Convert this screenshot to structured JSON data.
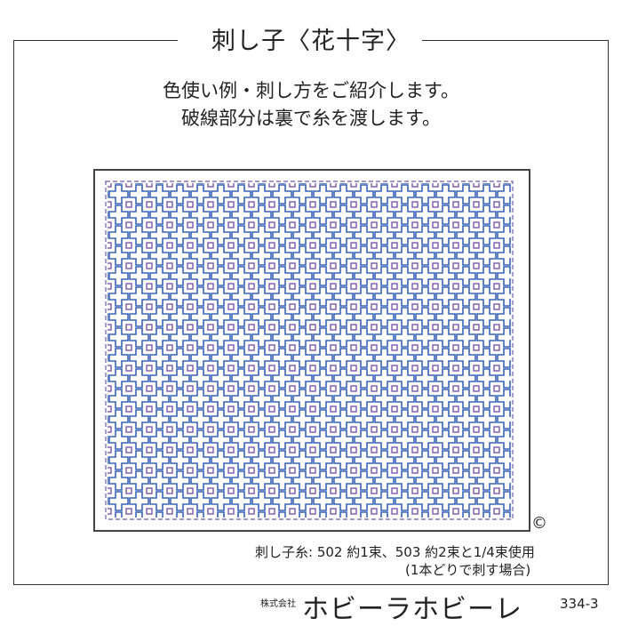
{
  "header": {
    "title": "刺し子〈花十字〉"
  },
  "intro": {
    "line1": "色使い例・刺し方をご紹介します。",
    "line2": "破線部分は裏で糸を渡します。"
  },
  "pattern": {
    "name": "花十字",
    "colors": {
      "blue": "#3a63b8",
      "purple": "#7b58ad"
    }
  },
  "copyright": "©",
  "thread": {
    "line1": "刺し子糸: 502 約1束、503 約2束と1/4束使用",
    "line2": "(1本どりで刺す場合)"
  },
  "footer": {
    "company_prefix": "株式会社",
    "company": "ホビーラホビーレ",
    "code": "334-3"
  }
}
